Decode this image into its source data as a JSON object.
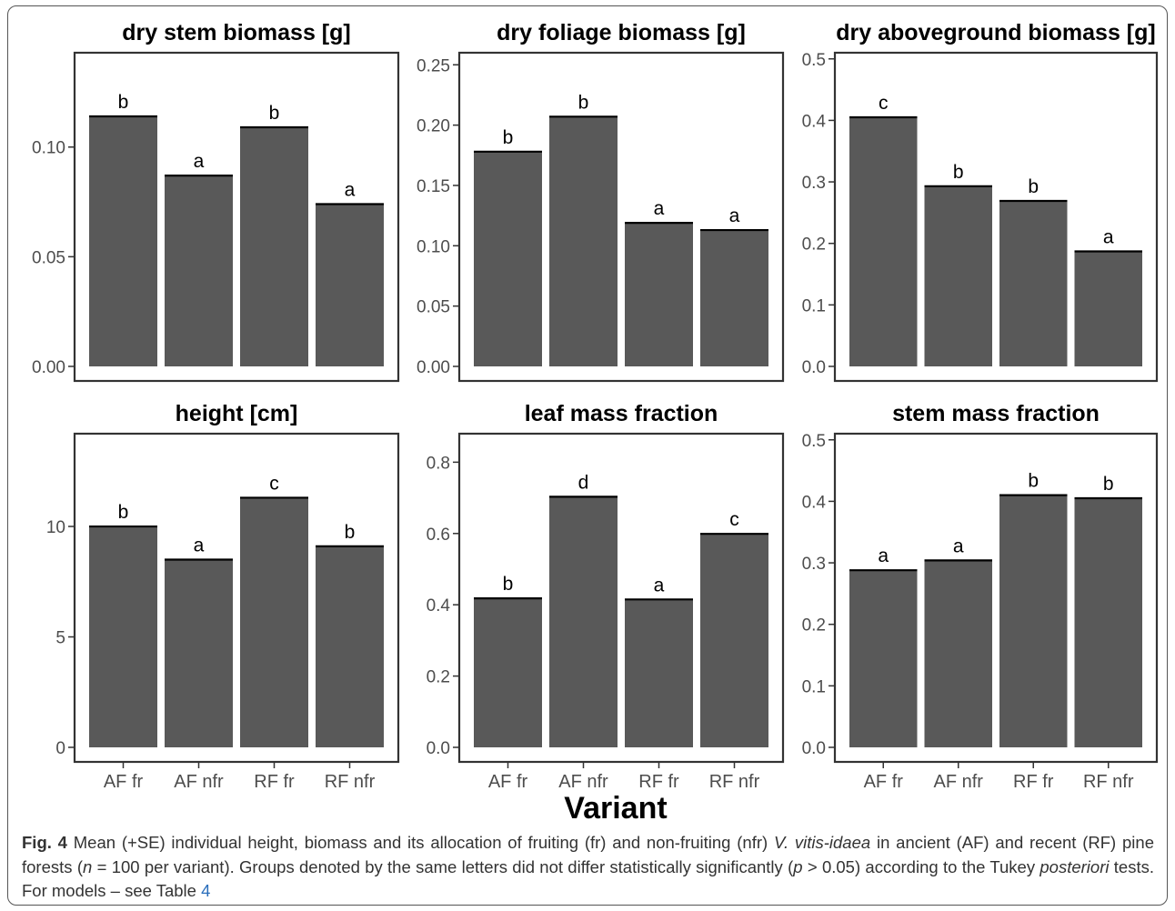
{
  "chart_data": [
    {
      "type": "bar",
      "title": "dry stem biomass [g]",
      "categories": [
        "AF fr",
        "AF nfr",
        "RF fr",
        "RF nfr"
      ],
      "values": [
        0.114,
        0.087,
        0.109,
        0.074
      ],
      "letters": [
        "b",
        "a",
        "b",
        "a"
      ],
      "ylim": [
        0,
        0.143
      ],
      "yticks": [
        0.0,
        0.05,
        0.1
      ],
      "ytick_labels": [
        "0.00",
        "0.05",
        "0.10"
      ],
      "show_xticks": false,
      "grid": false
    },
    {
      "type": "bar",
      "title": "dry foliage biomass [g]",
      "categories": [
        "AF fr",
        "AF nfr",
        "RF fr",
        "RF nfr"
      ],
      "values": [
        0.178,
        0.207,
        0.119,
        0.113
      ],
      "letters": [
        "b",
        "b",
        "a",
        "a"
      ],
      "ylim": [
        0,
        0.26
      ],
      "yticks": [
        0.0,
        0.05,
        0.1,
        0.15,
        0.2,
        0.25
      ],
      "ytick_labels": [
        "0.00",
        "0.05",
        "0.10",
        "0.15",
        "0.20",
        "0.25"
      ],
      "show_xticks": false,
      "grid": false
    },
    {
      "type": "bar",
      "title": "dry aboveground biomass [g]",
      "categories": [
        "AF fr",
        "AF nfr",
        "RF fr",
        "RF nfr"
      ],
      "values": [
        0.405,
        0.293,
        0.269,
        0.187
      ],
      "letters": [
        "c",
        "b",
        "b",
        "a"
      ],
      "ylim": [
        0,
        0.51
      ],
      "yticks": [
        0.0,
        0.1,
        0.2,
        0.3,
        0.4,
        0.5
      ],
      "ytick_labels": [
        "0.0",
        "0.1",
        "0.2",
        "0.3",
        "0.4",
        "0.5"
      ],
      "show_xticks": false,
      "grid": false
    },
    {
      "type": "bar",
      "title": "height [cm]",
      "categories": [
        "AF fr",
        "AF nfr",
        "RF fr",
        "RF nfr"
      ],
      "values": [
        10.0,
        8.5,
        11.3,
        9.1
      ],
      "letters": [
        "b",
        "a",
        "c",
        "b"
      ],
      "ylim": [
        0,
        14.2
      ],
      "yticks": [
        0,
        5,
        10
      ],
      "ytick_labels": [
        "0",
        "5",
        "10"
      ],
      "show_xticks": true,
      "grid": false
    },
    {
      "type": "bar",
      "title": "leaf mass fraction",
      "categories": [
        "AF fr",
        "AF nfr",
        "RF fr",
        "RF nfr"
      ],
      "values": [
        0.418,
        0.703,
        0.415,
        0.599
      ],
      "letters": [
        "b",
        "d",
        "a",
        "c"
      ],
      "ylim": [
        0,
        0.88
      ],
      "yticks": [
        0.0,
        0.2,
        0.4,
        0.6,
        0.8
      ],
      "ytick_labels": [
        "0.0",
        "0.2",
        "0.4",
        "0.6",
        "0.8"
      ],
      "show_xticks": true,
      "grid": false
    },
    {
      "type": "bar",
      "title": "stem mass fraction",
      "categories": [
        "AF fr",
        "AF nfr",
        "RF fr",
        "RF nfr"
      ],
      "values": [
        0.288,
        0.304,
        0.41,
        0.405
      ],
      "letters": [
        "a",
        "a",
        "b",
        "b"
      ],
      "ylim": [
        0,
        0.51
      ],
      "yticks": [
        0.0,
        0.1,
        0.2,
        0.3,
        0.4,
        0.5
      ],
      "ytick_labels": [
        "0.0",
        "0.1",
        "0.2",
        "0.3",
        "0.4",
        "0.5"
      ],
      "show_xticks": true,
      "grid": false
    }
  ],
  "shared_xlabel": "Variant",
  "colors": {
    "bar": "#595959",
    "bar_top": "#000000",
    "panel_border": "#333333",
    "text": "#000000",
    "tick_text": "#4d4d4d"
  },
  "caption": {
    "fig_label": "Fig. 4",
    "text_1": " Mean (+SE) individual height, biomass and its allocation of fruiting (fr) and non-fruiting (nfr) ",
    "species": "V. vitis-idaea",
    "text_2": " in ancient (AF) and recent (RF) pine forests (",
    "n_symbol": "n",
    "text_3": " = 100 per variant). Groups denoted by the same letters did not differ statistically significantly (",
    "p_symbol": "p",
    "text_4": " > 0.05) according to the Tukey ",
    "posteriori": "posteriori",
    "text_5": " tests. For models – see Table ",
    "table_ref": "4"
  }
}
